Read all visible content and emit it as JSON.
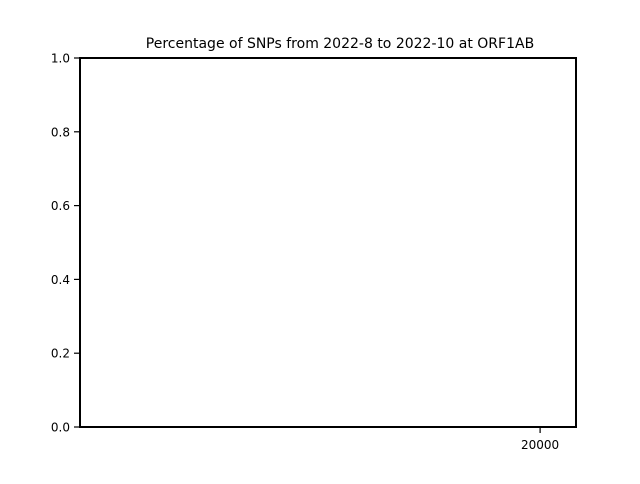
{
  "chart_data": {
    "type": "line",
    "title": "Percentage of SNPs from 2022-8 to 2022-10 at ORF1AB",
    "xlabel": "",
    "ylabel": "",
    "xlim": [
      1,
      21560
    ],
    "ylim": [
      0,
      1
    ],
    "y_ticks": [
      {
        "value": 0.0,
        "label": "0.0"
      },
      {
        "value": 0.2,
        "label": "0.2"
      },
      {
        "value": 0.4,
        "label": "0.4"
      },
      {
        "value": 0.6,
        "label": "0.6"
      },
      {
        "value": 0.8,
        "label": "0.8"
      },
      {
        "value": 1.0,
        "label": "1.0"
      }
    ],
    "x_ticks": [
      {
        "value": 20000,
        "label": "20000"
      }
    ],
    "series": [],
    "grid": false,
    "legend": "none"
  }
}
